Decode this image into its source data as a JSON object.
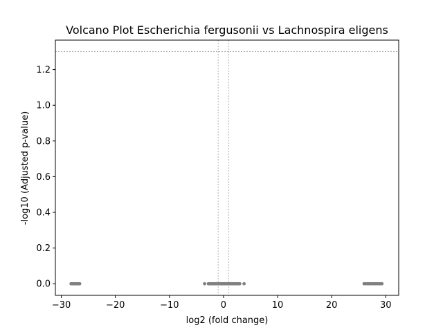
{
  "chart_data": {
    "type": "scatter",
    "title": "Volcano Plot Escherichia fergusonii vs Lachnospira eligens",
    "xlabel": "log2 (fold change)",
    "ylabel": "-log10 (Adjusted p-value)",
    "xlim": [
      -31.1,
      32.4
    ],
    "ylim": [
      -0.065,
      1.365
    ],
    "xticks": [
      -30,
      -20,
      -10,
      0,
      10,
      20,
      30
    ],
    "xtick_labels": [
      "−30",
      "−20",
      "−10",
      "0",
      "10",
      "20",
      "30"
    ],
    "yticks": [
      0.0,
      0.2,
      0.4,
      0.6,
      0.8,
      1.0,
      1.2
    ],
    "ytick_labels": [
      "0.0",
      "0.2",
      "0.4",
      "0.6",
      "0.8",
      "1.0",
      "1.2"
    ],
    "grid": false,
    "threshold_lines": {
      "vertical": [
        -1,
        1
      ],
      "horizontal": [
        1.301
      ]
    },
    "point_color": "#808080",
    "threshold_color": "#808080",
    "series": [
      {
        "points": [
          [
            -28.2,
            0
          ],
          [
            -28.0,
            0
          ],
          [
            -27.8,
            0
          ],
          [
            -27.6,
            0
          ],
          [
            -27.4,
            0
          ],
          [
            -27.2,
            0
          ],
          [
            -27.0,
            0
          ],
          [
            -26.8,
            0
          ],
          [
            -26.6,
            0
          ],
          [
            -3.5,
            0
          ],
          [
            -2.8,
            0
          ],
          [
            -2.6,
            0
          ],
          [
            -2.4,
            0
          ],
          [
            -2.2,
            0
          ],
          [
            -2.0,
            0
          ],
          [
            -1.8,
            0
          ],
          [
            -1.6,
            0
          ],
          [
            -1.4,
            0
          ],
          [
            -1.2,
            0
          ],
          [
            -1.0,
            0
          ],
          [
            -0.8,
            0
          ],
          [
            -0.6,
            0
          ],
          [
            -0.4,
            0
          ],
          [
            -0.2,
            0
          ],
          [
            0.0,
            0
          ],
          [
            0.2,
            0
          ],
          [
            0.4,
            0
          ],
          [
            0.6,
            0
          ],
          [
            0.8,
            0
          ],
          [
            1.0,
            0
          ],
          [
            1.2,
            0
          ],
          [
            1.4,
            0
          ],
          [
            1.6,
            0
          ],
          [
            1.8,
            0
          ],
          [
            2.0,
            0
          ],
          [
            2.2,
            0
          ],
          [
            2.4,
            0
          ],
          [
            2.6,
            0
          ],
          [
            2.8,
            0
          ],
          [
            3.0,
            0
          ],
          [
            3.8,
            0
          ],
          [
            26.0,
            0
          ],
          [
            26.3,
            0
          ],
          [
            26.6,
            0
          ],
          [
            26.9,
            0
          ],
          [
            27.2,
            0
          ],
          [
            27.5,
            0
          ],
          [
            27.8,
            0
          ],
          [
            28.1,
            0
          ],
          [
            28.4,
            0
          ],
          [
            28.7,
            0
          ],
          [
            29.0,
            0
          ],
          [
            29.3,
            0
          ]
        ]
      }
    ]
  }
}
